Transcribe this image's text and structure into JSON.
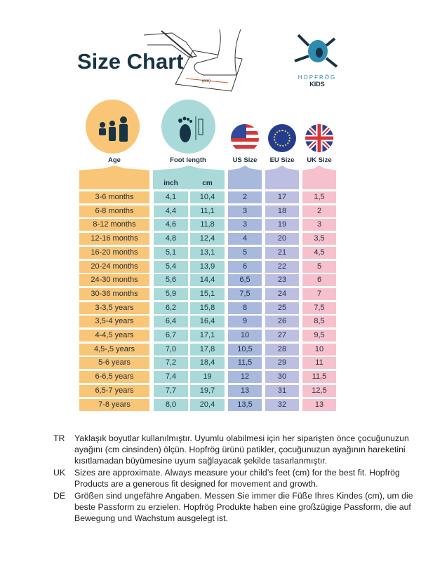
{
  "title": "Size Chart",
  "illustration_label": "(cm)",
  "logo": {
    "brand": "HOPFRÖG",
    "sub": "KIDS"
  },
  "colors": {
    "age": "#f9c576",
    "foot": "#a9dad9",
    "us": "#a9b9de",
    "eu": "#bdbfe2",
    "uk": "#f6c1cd",
    "text": "#173446"
  },
  "headers": {
    "age": "Age",
    "foot": "Foot length",
    "us": "US Size",
    "eu": "EU Size",
    "uk": "UK Size",
    "inch": "inch",
    "cm": "cm"
  },
  "icons": {
    "age": "children-icon",
    "foot": "foot-ruler-icon",
    "us": "us-flag-icon",
    "eu": "eu-flag-icon",
    "uk": "uk-flag-icon"
  },
  "rows": [
    [
      "3-6 months",
      "4,1",
      "10,4",
      "2",
      "17",
      "1,5"
    ],
    [
      "6-8 months",
      "4,4",
      "11,1",
      "3",
      "18",
      "2"
    ],
    [
      "8-12 months",
      "4,6",
      "11,8",
      "3",
      "19",
      "3"
    ],
    [
      "12-16 months",
      "4,8",
      "12,4",
      "4",
      "20",
      "3,5"
    ],
    [
      "16-20 months",
      "5,1",
      "13,1",
      "5",
      "21",
      "4,5"
    ],
    [
      "20-24 months",
      "5,4",
      "13,9",
      "6",
      "22",
      "5"
    ],
    [
      "24-30 months",
      "5,6",
      "14,4",
      "6,5",
      "23",
      "6"
    ],
    [
      "30-36 months",
      "5,9",
      "15,1",
      "7,5",
      "24",
      "7"
    ],
    [
      "3-3,5 years",
      "6,2",
      "15,8",
      "8",
      "25",
      "7,5"
    ],
    [
      "3,5-4 years",
      "6,4",
      "16,4",
      "9",
      "26",
      "8,5"
    ],
    [
      "4-4,5 years",
      "6,7",
      "17,1",
      "10",
      "27",
      "9,5"
    ],
    [
      "4,5-,5 years",
      "7,0",
      "17,8",
      "10,5",
      "28",
      "10"
    ],
    [
      "5-6 years",
      "7,2",
      "18,4",
      "11,5",
      "29",
      "11"
    ],
    [
      "6-6,5 years",
      "7,4",
      "19",
      "12",
      "30",
      "11,5"
    ],
    [
      "6,5-7 years",
      "7,7",
      "19,7",
      "13",
      "31",
      "12,5"
    ],
    [
      "7-8 years",
      "8,0",
      "20,4",
      "13,5",
      "32",
      "13"
    ]
  ],
  "notes": [
    {
      "code": "TR",
      "text": "Yaklaşık boyutlar kullanılmıştır. Uyumlu olabilmesi için her siparişten önce çocuğunuzun ayağını (cm cinsinden) ölçün. Hopfrög ürünü patikler, çocuğunuzun ayağının hareketini kısıtlamadan büyümesine uyum sağlayacak şekilde tasarlanmıştır."
    },
    {
      "code": "UK",
      "text": "Sizes are approximate. Always measure your child’s feet (cm) for the best fit. Hopfrög Products are a generous fit designed for movement and growth."
    },
    {
      "code": "DE",
      "text": "Größen sind ungefähre Angaben. Messen Sie immer die Füße Ihres Kindes (cm), um die beste Passform zu erzielen. Hopfrög Produkte haben eine großzügige Passform, die auf Bewegung und Wachstum ausgelegt ist."
    }
  ]
}
